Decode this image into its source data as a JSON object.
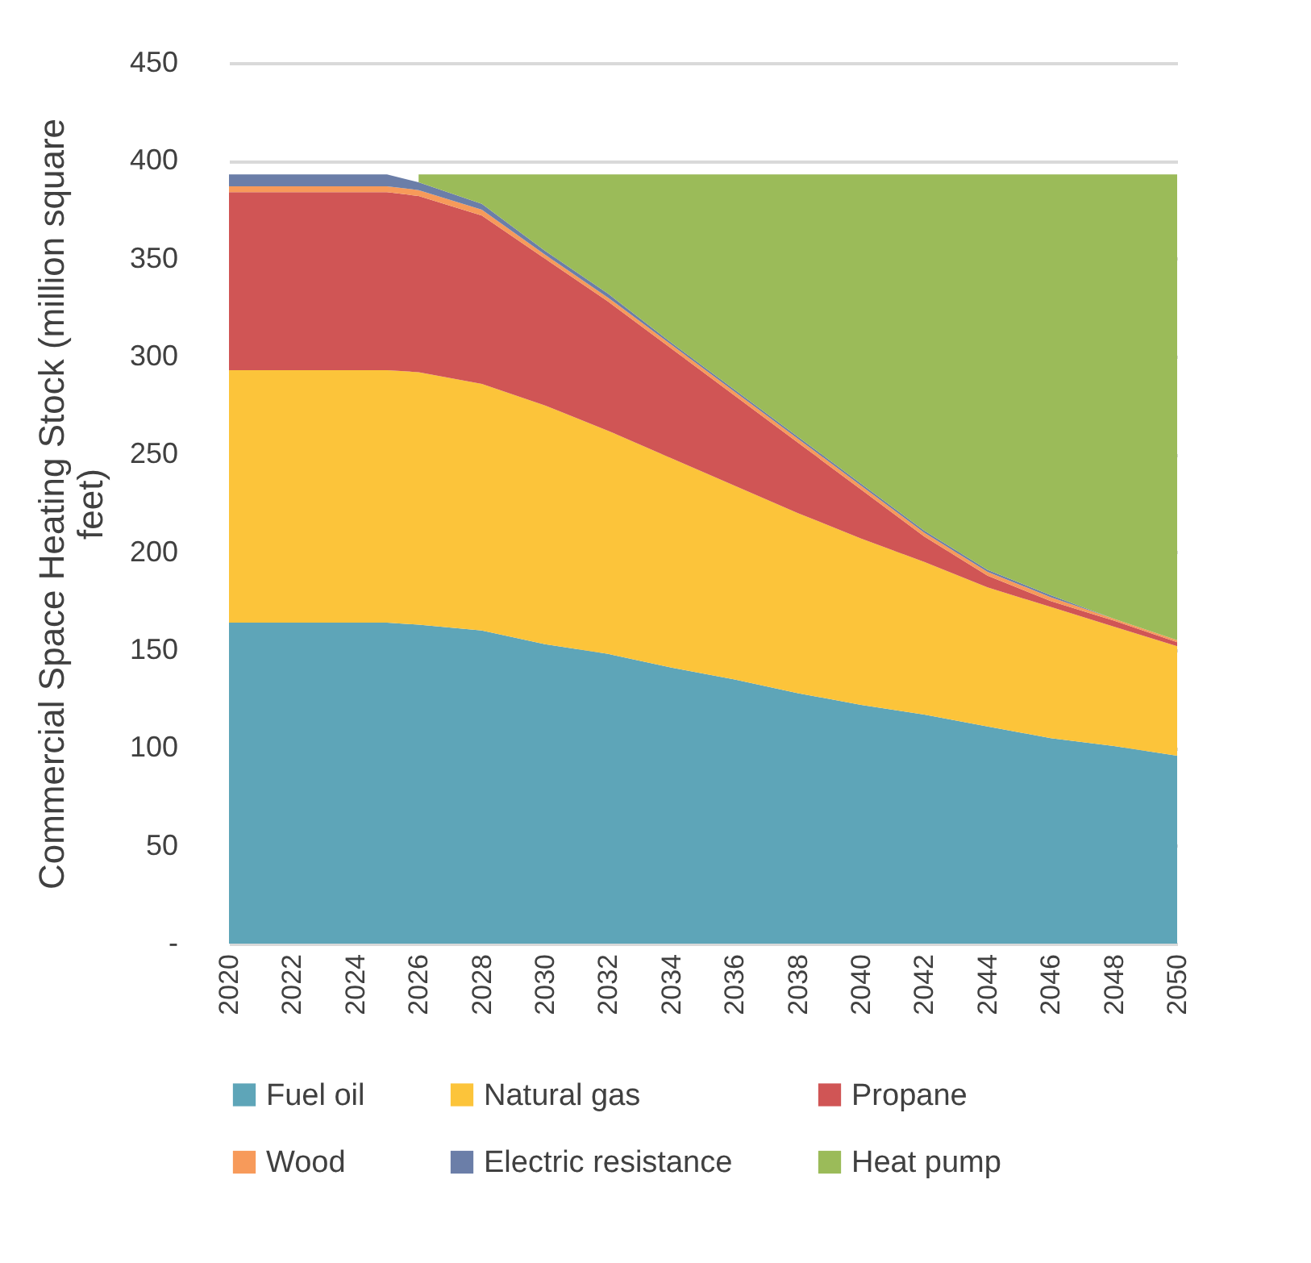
{
  "chart_data": {
    "type": "area",
    "stacked": true,
    "ylabel": "Commercial Space Heating Stock (million square feet)",
    "x": [
      2020,
      2022,
      2024,
      2025,
      2026,
      2028,
      2030,
      2032,
      2034,
      2036,
      2038,
      2040,
      2042,
      2044,
      2046,
      2048,
      2050
    ],
    "series": [
      {
        "name": "Fuel oil",
        "color": "#5ea5b8",
        "values": [
          164,
          164,
          164,
          164,
          163,
          160,
          153,
          148,
          141,
          135,
          128,
          122,
          117,
          111,
          105,
          101,
          96
        ]
      },
      {
        "name": "Natural gas",
        "color": "#fcc43a",
        "values": [
          129,
          129,
          129,
          129,
          129,
          126,
          122,
          114,
          107,
          99,
          92,
          85,
          78,
          71,
          67,
          61,
          56
        ]
      },
      {
        "name": "Propane",
        "color": "#d05555",
        "values": [
          91,
          91,
          91,
          91,
          90,
          86,
          75,
          66,
          56,
          46,
          36,
          25,
          13,
          6,
          3,
          3,
          2
        ]
      },
      {
        "name": "Wood",
        "color": "#f79a5a",
        "values": [
          3,
          3,
          3,
          3,
          3,
          3,
          2,
          2,
          2,
          2,
          2,
          2,
          2,
          2,
          2,
          1,
          1
        ]
      },
      {
        "name": "Electric resistance",
        "color": "#6b7ea8",
        "values": [
          6,
          6,
          6,
          6,
          4,
          3,
          2,
          2,
          1,
          1,
          1,
          1,
          1,
          1,
          1,
          0,
          0
        ]
      },
      {
        "name": "Heat pump",
        "color": "#9bbb59",
        "values": [
          null,
          null,
          null,
          null,
          4,
          15,
          39,
          61,
          86,
          110,
          134,
          158,
          182,
          202,
          215,
          227,
          238
        ]
      }
    ],
    "xlim": [
      2020,
      2050
    ],
    "xticks": [
      2020,
      2022,
      2024,
      2026,
      2028,
      2030,
      2032,
      2034,
      2036,
      2038,
      2040,
      2042,
      2044,
      2046,
      2048,
      2050
    ],
    "ylim": [
      0,
      450
    ],
    "yticks": [
      {
        "value": 0,
        "label": "-"
      },
      50,
      100,
      150,
      200,
      250,
      300,
      350,
      400,
      450
    ],
    "grid": "y",
    "legend": "bottom"
  }
}
